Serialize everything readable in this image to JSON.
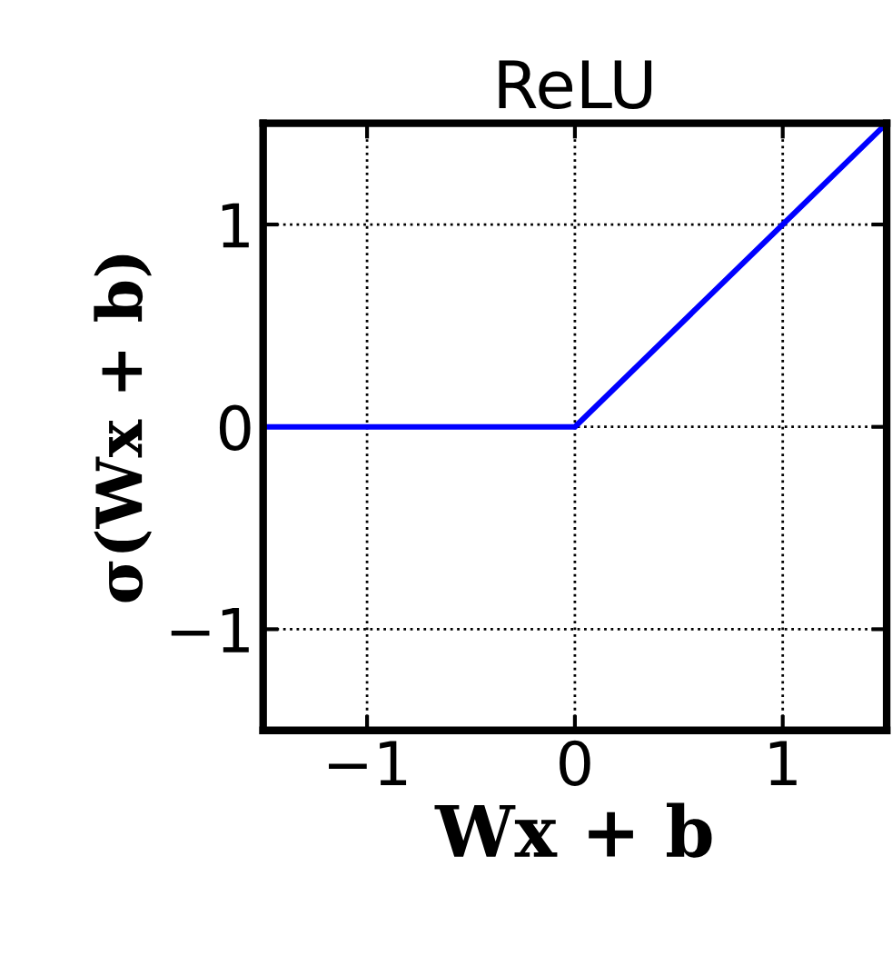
{
  "chart_data": {
    "type": "line",
    "title": "ReLU",
    "xlabel": "Wx + b",
    "ylabel": "σ(Wx + b)",
    "x": [
      -1.5,
      0,
      1.5
    ],
    "series": [
      {
        "color": "#0000ff",
        "values": [
          0,
          0,
          1.5
        ]
      }
    ],
    "xlim": [
      -1.5,
      1.5
    ],
    "ylim": [
      -1.5,
      1.5
    ],
    "xticks": [
      {
        "value": -1,
        "label": "−1"
      },
      0,
      1
    ],
    "yticks": [
      {
        "value": -1,
        "label": "−1"
      },
      0,
      1
    ],
    "grid": true,
    "line_style": "solid",
    "marker": "none"
  }
}
